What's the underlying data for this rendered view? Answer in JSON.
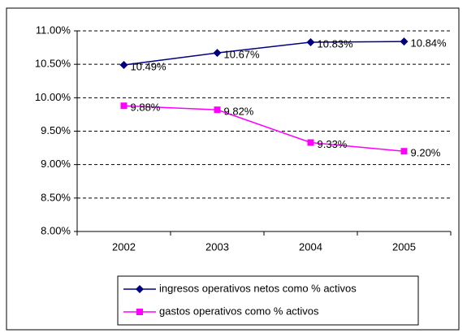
{
  "chart_data": {
    "type": "line",
    "categories": [
      "2002",
      "2003",
      "2004",
      "2005"
    ],
    "series": [
      {
        "name": "ingresos operativos netos como % activos",
        "color": "#000080",
        "marker": "diamond",
        "values": [
          10.49,
          10.67,
          10.83,
          10.84
        ],
        "value_labels": [
          "10.49%",
          "10.67%",
          "10.83%",
          "10.84%"
        ]
      },
      {
        "name": "gastos operativos como % activos",
        "color": "#ff00ff",
        "marker": "square",
        "values": [
          9.88,
          9.82,
          9.33,
          9.2
        ],
        "value_labels": [
          "9.88%",
          "9.82%",
          "9.33%",
          "9.20%"
        ]
      }
    ],
    "ylim": [
      8,
      11
    ],
    "yticks": [
      {
        "value": 8,
        "label": "8.00%"
      },
      {
        "value": 8.5,
        "label": "8.50%"
      },
      {
        "value": 9,
        "label": "9.00%"
      },
      {
        "value": 9.5,
        "label": "9.50%"
      },
      {
        "value": 10,
        "label": "10.00%"
      },
      {
        "value": 10.5,
        "label": "10.50%"
      },
      {
        "value": 11,
        "label": "11.00%"
      }
    ],
    "grid": true,
    "legend": "bottom"
  }
}
